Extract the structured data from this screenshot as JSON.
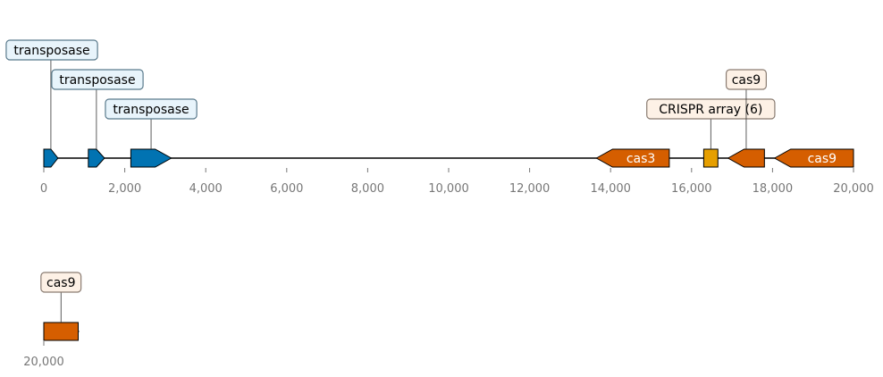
{
  "colors": {
    "transposase": "#0173b2",
    "cas": "#d55e00",
    "crispr": "#e69f00",
    "backbone": "#000000",
    "transposase_box_fill": "#e8f4fb",
    "transposase_box_stroke": "#5a7a8c",
    "cas_box_fill": "#fdf1e6",
    "cas_box_stroke": "#8a7c72",
    "tick_text": "#777777"
  },
  "track1": {
    "axis": {
      "min": 0,
      "max": 20000,
      "ticks": [
        0,
        2000,
        4000,
        6000,
        8000,
        10000,
        12000,
        14000,
        16000,
        18000,
        20000
      ],
      "tick_labels": [
        "0",
        "2,000",
        "4,000",
        "6,000",
        "8,000",
        "10,000",
        "12,000",
        "14,000",
        "16,000",
        "18,000",
        "20,000"
      ]
    },
    "features": [
      {
        "id": "tnp1",
        "start": 0,
        "end": 350,
        "strand": 1,
        "type": "transposase",
        "inner_label": "",
        "callout": "transposase",
        "callout_level": 3
      },
      {
        "id": "tnp2",
        "start": 1100,
        "end": 1500,
        "strand": 1,
        "type": "transposase",
        "inner_label": "",
        "callout": "transposase",
        "callout_level": 2
      },
      {
        "id": "tnp3",
        "start": 2150,
        "end": 3150,
        "strand": 1,
        "type": "transposase",
        "inner_label": "",
        "callout": "transposase",
        "callout_level": 1
      },
      {
        "id": "cas3",
        "start": 13650,
        "end": 15450,
        "strand": -1,
        "type": "cas",
        "inner_label": "cas3",
        "callout": "",
        "callout_level": 0
      },
      {
        "id": "crispr",
        "start": 16300,
        "end": 16650,
        "strand": 0,
        "type": "crispr",
        "inner_label": "",
        "callout": "CRISPR array (6)",
        "callout_level": 1
      },
      {
        "id": "cas9a",
        "start": 16900,
        "end": 17800,
        "strand": -1,
        "type": "cas",
        "inner_label": "",
        "callout": "cas9",
        "callout_level": 2
      },
      {
        "id": "cas9b",
        "start": 18050,
        "end": 20000,
        "strand": -1,
        "type": "cas",
        "inner_label": "cas9",
        "callout": "",
        "callout_level": 0
      }
    ]
  },
  "track2": {
    "axis": {
      "min": 20000,
      "max": 20870,
      "ticks": [
        20000
      ],
      "tick_labels": [
        "20,000"
      ]
    },
    "features": [
      {
        "id": "cas9c",
        "start": 20000,
        "end": 20850,
        "strand": 0,
        "type": "cas",
        "inner_label": "",
        "callout": "cas9",
        "callout_level": 1
      }
    ]
  }
}
